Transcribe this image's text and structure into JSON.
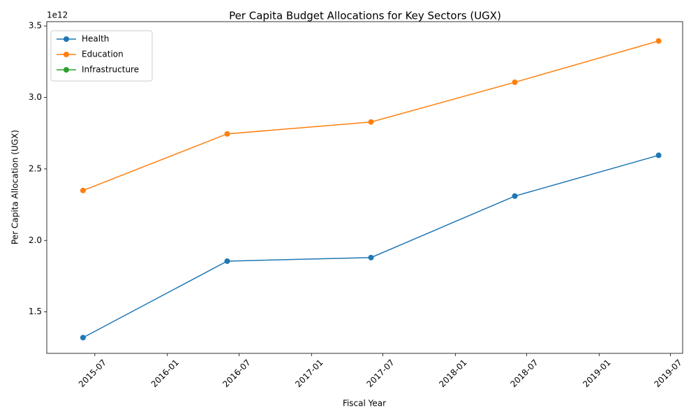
{
  "chart_data": {
    "type": "line",
    "title": "Per Capita Budget Allocations for Key Sectors (UGX)",
    "x_label": "Fiscal Year",
    "y_label": "Per Capita Allocation (UGX)",
    "y_offset": "1e12",
    "x": [
      "2015-06",
      "2016-06",
      "2017-06",
      "2018-06",
      "2019-06"
    ],
    "series": [
      {
        "name": "Health",
        "color": "#1f77b4",
        "values": [
          1.32,
          1.855,
          1.88,
          2.31,
          2.595
        ]
      },
      {
        "name": "Education",
        "color": "#ff7f0e",
        "values": [
          2.349,
          2.745,
          2.828,
          3.106,
          3.395
        ]
      },
      {
        "name": "Infrastructure",
        "color": "#2ca02c",
        "values": [
          null,
          null,
          null,
          null,
          null
        ]
      }
    ],
    "xlim": [
      "2015-03",
      "2019-08"
    ],
    "xticks": [
      "2015-07",
      "2016-01",
      "2016-07",
      "2017-01",
      "2017-07",
      "2018-01",
      "2018-07",
      "2019-01",
      "2019-07"
    ],
    "ylim": [
      1.21,
      3.53
    ],
    "yticks": [
      1.5,
      {
        "value": 2,
        "label": "2.0"
      },
      2.5,
      {
        "value": 3,
        "label": "3.0"
      },
      3.5
    ],
    "legend": "upper-left",
    "grid": false
  }
}
